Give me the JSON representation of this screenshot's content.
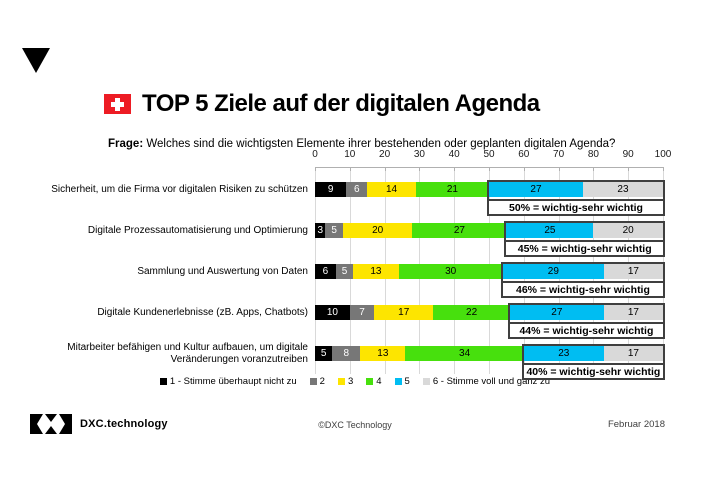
{
  "header": {
    "title": "TOP 5 Ziele auf der digitalen Agenda"
  },
  "question": {
    "label": "Frage:",
    "text": " Welches sind die wichtigsten Elemente ihrer bestehenden oder geplanten digitalen Agenda?"
  },
  "chart_data": {
    "type": "bar",
    "orientation": "horizontal",
    "stacked": true,
    "xlim": [
      0,
      100
    ],
    "tick_step": 10,
    "grid": true,
    "legend_position": "bottom",
    "categories": [
      "Sicherheit, um die Firma vor digitalen Risiken zu schützen",
      "Digitale Prozessautomatisierung und Optimierung",
      "Sammlung und Auswertung von Daten",
      "Digitale Kundenerlebnisse (zB. Apps, Chatbots)",
      "Mitarbeiter befähigen und Kultur aufbauen, um digitale Veränderungen voranzutreiben"
    ],
    "series": [
      {
        "name": "1 - Stimme überhaupt nicht zu",
        "color": "#000000",
        "text_color": "#ffffff",
        "values": [
          9,
          3,
          6,
          10,
          5
        ]
      },
      {
        "name": "2",
        "color": "#777777",
        "text_color": "#ffffff",
        "values": [
          6,
          5,
          5,
          7,
          8
        ]
      },
      {
        "name": "3",
        "color": "#fde500",
        "text_color": "#000000",
        "values": [
          14,
          20,
          13,
          17,
          13
        ]
      },
      {
        "name": "4",
        "color": "#47e00d",
        "text_color": "#000000",
        "values": [
          21,
          27,
          30,
          22,
          34
        ]
      },
      {
        "name": "5",
        "color": "#00bdf2",
        "text_color": "#000000",
        "values": [
          27,
          25,
          29,
          27,
          23
        ]
      },
      {
        "name": "6 - Stimme voll und ganz zu",
        "color": "#d9d9d9",
        "text_color": "#000000",
        "values": [
          23,
          20,
          17,
          17,
          17
        ]
      }
    ],
    "annotations": [
      "50% = wichtig-sehr wichtig",
      "45% = wichtig-sehr wichtig",
      "46% = wichtig-sehr wichtig",
      "44% = wichtig-sehr wichtig",
      "40% = wichtig-sehr wichtig"
    ],
    "annotation_covers_last_n_series": 2
  },
  "colors": {
    "flag_red": "#ed1c24",
    "grid": "#d9d9d9",
    "annotation_border": "#3f3f3f"
  },
  "footer": {
    "brand": "DXC.technology",
    "copyright": "©DXC Technology",
    "date": "Februar 2018"
  }
}
